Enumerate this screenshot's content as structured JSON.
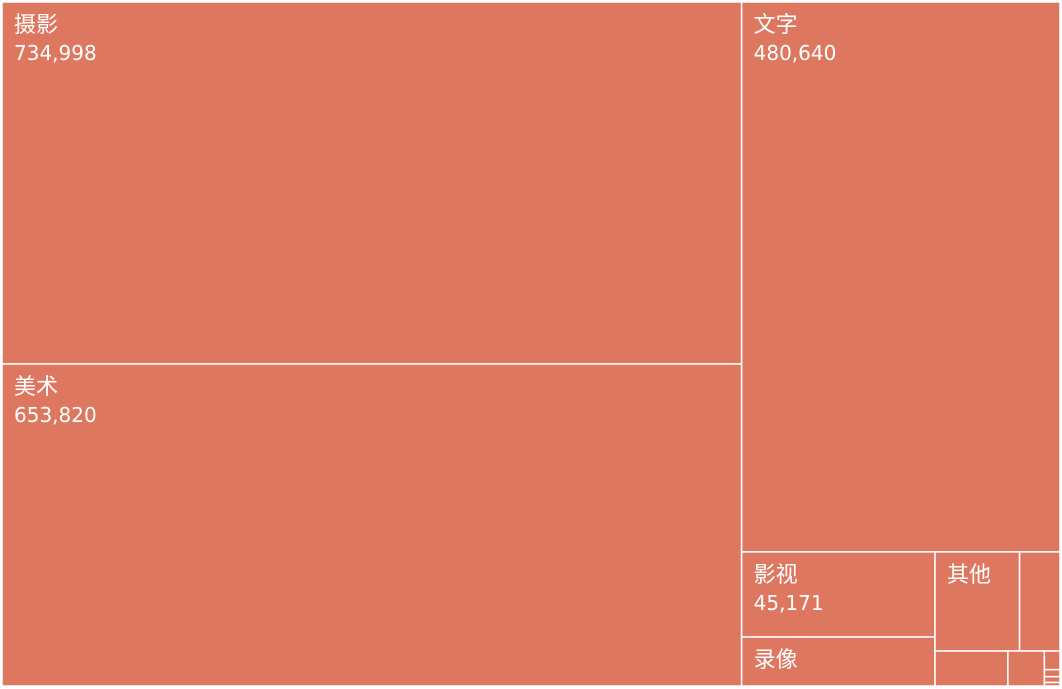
{
  "chart_data": {
    "type": "treemap",
    "title": "",
    "fill_color": "#de775f",
    "border_color": "#ffffff",
    "nodes": [
      {
        "label": "摄影",
        "value": 734998,
        "value_text": "734,998"
      },
      {
        "label": "美术",
        "value": 653820,
        "value_text": "653,820"
      },
      {
        "label": "文字",
        "value": 480640,
        "value_text": "480,640"
      },
      {
        "label": "影视",
        "value": 45171,
        "value_text": "45,171"
      },
      {
        "label": "录像",
        "value": 26000,
        "value_text": ""
      },
      {
        "label": "其他",
        "value": 23000,
        "value_text": ""
      },
      {
        "label": "",
        "value": 11000,
        "value_text": ""
      },
      {
        "label": "",
        "value": 7000,
        "value_text": ""
      },
      {
        "label": "",
        "value": 3500,
        "value_text": ""
      },
      {
        "label": "",
        "value": 800,
        "value_text": ""
      },
      {
        "label": "",
        "value": 300,
        "value_text": ""
      },
      {
        "label": "",
        "value": 250,
        "value_text": ""
      },
      {
        "label": "",
        "value": 150,
        "value_text": ""
      }
    ]
  }
}
